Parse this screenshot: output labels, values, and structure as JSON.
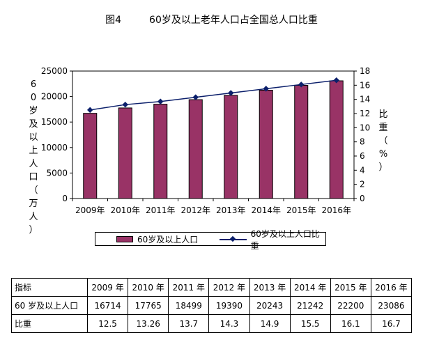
{
  "title": {
    "figure": "图4",
    "text": "60岁及以上老年人口占全国总人口比重"
  },
  "axes": {
    "left_label": "60岁及以上人口（万人）",
    "right_label": "比重（%）"
  },
  "legend": {
    "bar": "60岁及以上人口",
    "line": "60岁及以上人口比重"
  },
  "colors": {
    "bar": "#993366",
    "line": "#0b1f6b"
  },
  "chart_data": {
    "type": "bar",
    "categories": [
      "2009年",
      "2010年",
      "2011年",
      "2012年",
      "2013年",
      "2014年",
      "2015年",
      "2016年"
    ],
    "series": [
      {
        "name": "60岁及以上人口",
        "type": "bar",
        "axis": "left",
        "values": [
          16714,
          17765,
          18499,
          19390,
          20243,
          21242,
          22200,
          23086
        ]
      },
      {
        "name": "60岁及以上人口比重",
        "type": "line",
        "axis": "right",
        "values": [
          12.5,
          13.26,
          13.7,
          14.3,
          14.9,
          15.5,
          16.1,
          16.7
        ]
      }
    ],
    "y_left": {
      "min": 0,
      "max": 25000,
      "ticks": [
        "0",
        "5000",
        "10000",
        "15000",
        "20000",
        "25000"
      ]
    },
    "y_right": {
      "min": 0,
      "max": 18,
      "ticks": [
        "0",
        "2",
        "4",
        "6",
        "8",
        "10",
        "12",
        "14",
        "16",
        "18"
      ]
    },
    "legend_position": "bottom",
    "grid": false
  },
  "table": {
    "header": [
      "指标",
      "2009 年",
      "2010 年",
      "2011 年",
      "2012 年",
      "2013 年",
      "2014 年",
      "2015 年",
      "2016 年"
    ],
    "rows": [
      [
        "60 岁及以上人口",
        "16714",
        "17765",
        "18499",
        "19390",
        "20243",
        "21242",
        "22200",
        "23086"
      ],
      [
        "比重",
        "12.5",
        "13.26",
        "13.7",
        "14.3",
        "14.9",
        "15.5",
        "16.1",
        "16.7"
      ]
    ]
  }
}
